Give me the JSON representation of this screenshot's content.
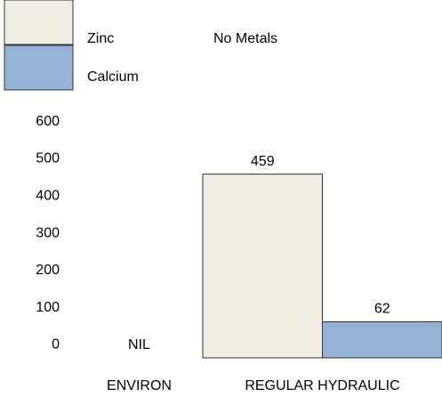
{
  "chart_data": {
    "type": "bar",
    "categories": [
      "ENVIRON",
      "REGULAR HYDRAULIC"
    ],
    "series": [
      {
        "name": "Zinc",
        "color": "#efede4",
        "values": [
          null,
          459
        ]
      },
      {
        "name": "No Metals",
        "color": "#ffffff",
        "values": [
          null,
          null
        ]
      },
      {
        "name": "Calcium",
        "color": "#95b3d7",
        "values": [
          null,
          62
        ]
      }
    ],
    "annotations": [
      {
        "text": "NIL",
        "category": 0
      }
    ],
    "ylim": [
      -35,
      640
    ],
    "yticks": [
      0,
      100,
      200,
      300,
      400,
      500,
      600
    ],
    "grid": false
  }
}
